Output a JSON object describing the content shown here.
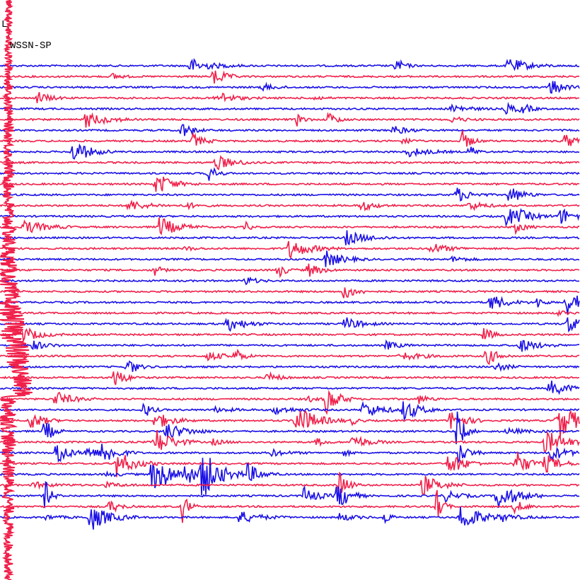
{
  "header": {
    "station": "L",
    "network": "WSSN-SP"
  }
}
